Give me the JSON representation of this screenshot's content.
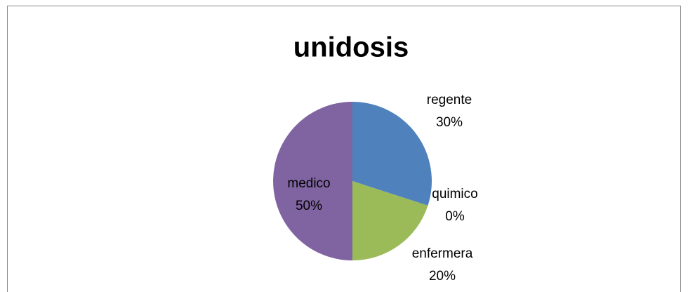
{
  "chart_data": {
    "type": "pie",
    "title": "unidosis",
    "categories": [
      "regente",
      "quimico",
      "enfermera",
      "medico"
    ],
    "values": [
      30,
      0,
      20,
      50
    ],
    "value_labels": [
      "30%",
      "0%",
      "20%",
      "50%"
    ],
    "colors": [
      "#4f81bd",
      "#c0504d",
      "#9bbb59",
      "#8064a2"
    ]
  }
}
